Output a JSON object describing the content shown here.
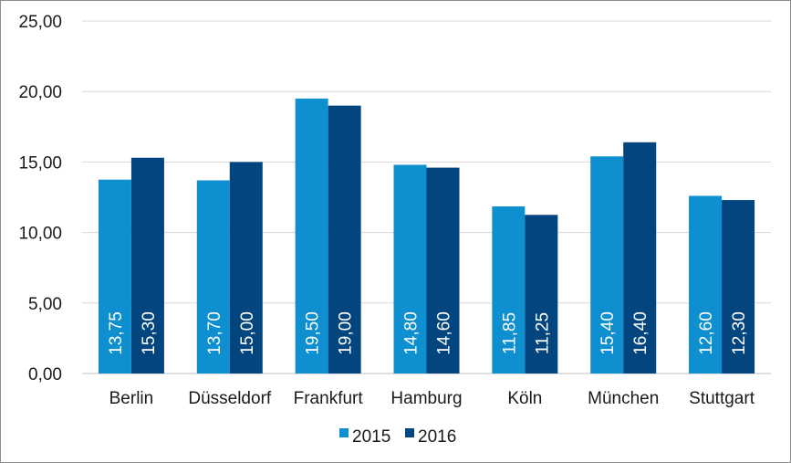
{
  "chart_data": {
    "type": "bar",
    "categories": [
      "Berlin",
      "Düsseldorf",
      "Frankfurt",
      "Hamburg",
      "Köln",
      "München",
      "Stuttgart"
    ],
    "series": [
      {
        "name": "2015",
        "color": "#0e8fd0",
        "values": [
          13.75,
          13.7,
          19.5,
          14.8,
          11.85,
          15.4,
          12.6
        ],
        "labels": [
          "13,75",
          "13,70",
          "19,50",
          "14,80",
          "11,85",
          "15,40",
          "12,60"
        ]
      },
      {
        "name": "2016",
        "color": "#03457e",
        "values": [
          15.3,
          15.0,
          19.0,
          14.6,
          11.25,
          16.4,
          12.3
        ],
        "labels": [
          "15,30",
          "15,00",
          "19,00",
          "14,60",
          "11,25",
          "16,40",
          "12,30"
        ]
      }
    ],
    "ylim": [
      0,
      25
    ],
    "yticks": [
      0,
      5,
      10,
      15,
      20,
      25
    ],
    "ytick_labels": [
      "0,00",
      "5,00",
      "10,00",
      "15,00",
      "20,00",
      "25,00"
    ],
    "grid": true,
    "legend": "bottom",
    "title": "",
    "xlabel": "",
    "ylabel": ""
  }
}
